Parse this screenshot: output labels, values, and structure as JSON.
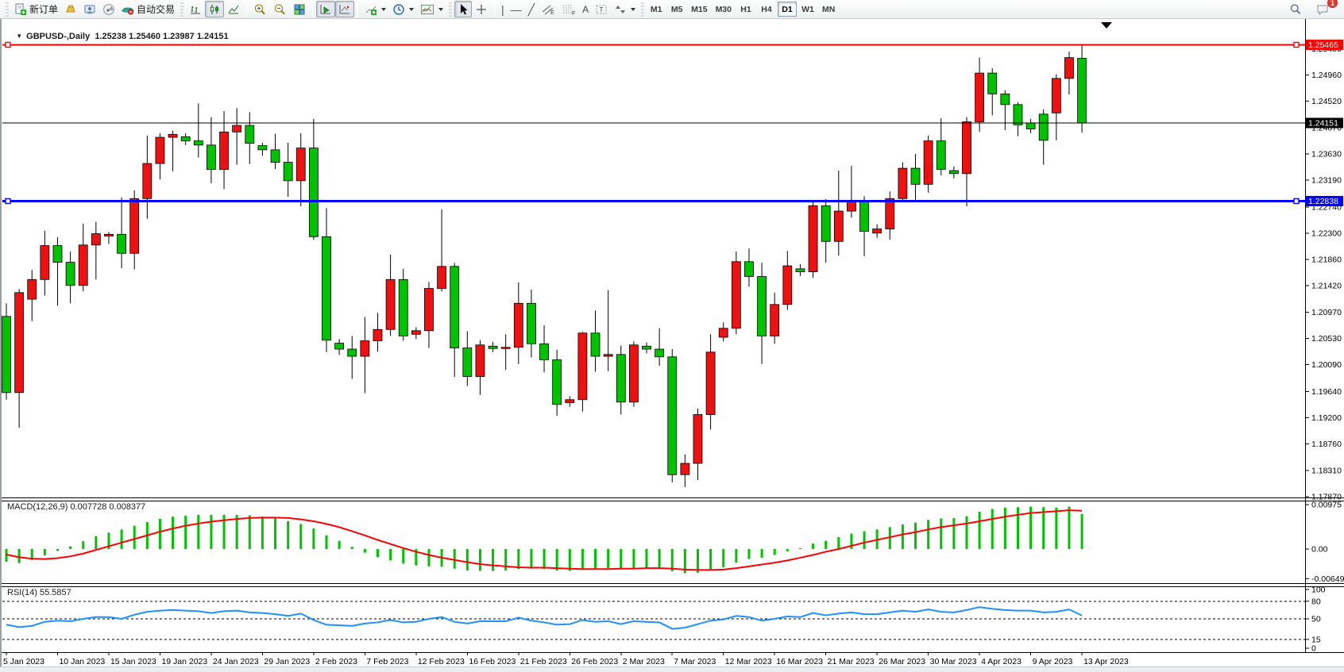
{
  "toolbar": {
    "new_order_label": "新订单",
    "auto_trading_label": "自动交易",
    "timeframes": [
      "M1",
      "M5",
      "M15",
      "M30",
      "H1",
      "H4",
      "D1",
      "W1",
      "MN"
    ],
    "active_timeframe": "D1",
    "notification_count": "1"
  },
  "chart": {
    "symbol_title": "GBPUSD-,Daily",
    "ohlc_readout": "1.25238 1.25460 1.23987 1.24151",
    "macd_label": "MACD(12,26,9) 0.007728 0.008377",
    "rsi_label": "RSI(14) 55.5857"
  },
  "colors": {
    "bull": "#ee1111",
    "bear": "#00c300",
    "wick": "#000000",
    "macd_hist": "#00c300",
    "macd_signal": "#ff0000",
    "rsi_line": "#1e90ff",
    "hline_red": "#ff0000",
    "hline_blue": "#0000ff",
    "hline_current": "#000000"
  },
  "chart_data": {
    "type": "candlestick",
    "symbol": "GBPUSD-",
    "period": "Daily",
    "current_bar": {
      "open": 1.25238,
      "high": 1.2546,
      "low": 1.23987,
      "close": 1.24151
    },
    "price_axis": {
      "ticks": [
        "1.25400",
        "1.24960",
        "1.24520",
        "1.24070",
        "1.23630",
        "1.23190",
        "1.22740",
        "1.22300",
        "1.21860",
        "1.21420",
        "1.20970",
        "1.20530",
        "1.20090",
        "1.19640",
        "1.19200",
        "1.18760",
        "1.18310",
        "1.17870"
      ],
      "badges": [
        {
          "text": "1.25465",
          "value": 1.25465,
          "color": "#ff0000"
        },
        {
          "text": "1.24151",
          "value": 1.24151,
          "color": "#000000"
        },
        {
          "text": "1.22838",
          "value": 1.22838,
          "color": "#0000ff"
        }
      ]
    },
    "hlines": [
      {
        "value": 1.25465,
        "color": "#ff0000",
        "width": 2,
        "handles": true,
        "name": "resistance-line"
      },
      {
        "value": 1.22838,
        "color": "#0000ff",
        "width": 3,
        "handles": true,
        "name": "support-line"
      },
      {
        "value": 1.24151,
        "color": "#000000",
        "width": 1,
        "handles": false,
        "name": "current-price-line"
      }
    ],
    "date_ticks": [
      "5 Jan 2023",
      "10 Jan 2023",
      "15 Jan 2023",
      "19 Jan 2023",
      "24 Jan 2023",
      "29 Jan 2023",
      "2 Feb 2023",
      "7 Feb 2023",
      "12 Feb 2023",
      "16 Feb 2023",
      "21 Feb 2023",
      "26 Feb 2023",
      "2 Mar 2023",
      "7 Mar 2023",
      "12 Mar 2023",
      "16 Mar 2023",
      "21 Mar 2023",
      "26 Mar 2023",
      "30 Mar 2023",
      "4 Apr 2023",
      "9 Apr 2023",
      "13 Apr 2023"
    ],
    "bars_columns": [
      "date",
      "open",
      "high",
      "low",
      "close"
    ],
    "bars": [
      [
        "5 Jan",
        1.209,
        1.2112,
        1.195,
        1.1962
      ],
      [
        "6 Jan",
        1.1962,
        1.2136,
        1.1903,
        1.213
      ],
      [
        "8 Jan",
        1.2119,
        1.2168,
        1.2082,
        1.2152
      ],
      [
        "9 Jan",
        1.2152,
        1.2234,
        1.2125,
        1.2209
      ],
      [
        "10 Jan",
        1.2209,
        1.2223,
        1.2108,
        1.2181
      ],
      [
        "11 Jan",
        1.2181,
        1.2199,
        1.2112,
        1.2142
      ],
      [
        "12 Jan",
        1.2142,
        1.2246,
        1.2132,
        1.221
      ],
      [
        "13 Jan",
        1.221,
        1.2249,
        1.2152,
        1.2229
      ],
      [
        "15 Jan",
        1.2225,
        1.2232,
        1.2212,
        1.2228
      ],
      [
        "16 Jan",
        1.2228,
        1.229,
        1.2171,
        1.2196
      ],
      [
        "17 Jan",
        1.2196,
        1.2302,
        1.2169,
        1.2288
      ],
      [
        "18 Jan",
        1.2288,
        1.2394,
        1.2254,
        1.2347
      ],
      [
        "19 Jan",
        1.2347,
        1.2398,
        1.232,
        1.2391
      ],
      [
        "20 Jan",
        1.2391,
        1.2402,
        1.2334,
        1.2396
      ],
      [
        "22 Jan",
        1.2392,
        1.2398,
        1.2378,
        1.2385
      ],
      [
        "23 Jan",
        1.2385,
        1.2448,
        1.2357,
        1.2378
      ],
      [
        "24 Jan",
        1.2378,
        1.2425,
        1.2314,
        1.2337
      ],
      [
        "25 Jan",
        1.2337,
        1.2435,
        1.2304,
        1.24
      ],
      [
        "26 Jan",
        1.24,
        1.244,
        1.2345,
        1.2411
      ],
      [
        "27 Jan",
        1.2411,
        1.2433,
        1.2346,
        1.2381
      ],
      [
        "29 Jan",
        1.2377,
        1.2382,
        1.236,
        1.237
      ],
      [
        "30 Jan",
        1.237,
        1.2397,
        1.2338,
        1.2349
      ],
      [
        "31 Jan",
        1.2349,
        1.2382,
        1.2291,
        1.2318
      ],
      [
        "1 Feb",
        1.2318,
        1.2398,
        1.2275,
        1.2373
      ],
      [
        "2 Feb",
        1.2373,
        1.2422,
        1.2219,
        1.2224
      ],
      [
        "3 Feb",
        1.2224,
        1.2272,
        1.203,
        1.205
      ],
      [
        "5 Feb",
        1.2045,
        1.2052,
        1.2025,
        1.2035
      ],
      [
        "6 Feb",
        1.2035,
        1.2057,
        1.1985,
        1.2023
      ],
      [
        "7 Feb",
        1.2023,
        1.2089,
        1.1961,
        1.2049
      ],
      [
        "8 Feb",
        1.2049,
        1.2096,
        1.2031,
        1.2068
      ],
      [
        "9 Feb",
        1.2068,
        1.2194,
        1.2057,
        1.2152
      ],
      [
        "10 Feb",
        1.2152,
        1.217,
        1.2049,
        1.2057
      ],
      [
        "12 Feb",
        1.206,
        1.2072,
        1.2052,
        1.2066
      ],
      [
        "13 Feb",
        1.2066,
        1.2148,
        1.2037,
        1.2137
      ],
      [
        "14 Feb",
        1.2137,
        1.227,
        1.2132,
        1.2174
      ],
      [
        "15 Feb",
        1.2174,
        1.218,
        1.1988,
        1.2037
      ],
      [
        "16 Feb",
        1.2037,
        1.2065,
        1.1973,
        1.1989
      ],
      [
        "17 Feb",
        1.1989,
        1.205,
        1.1958,
        1.2042
      ],
      [
        "19 Feb",
        1.204,
        1.2047,
        1.203,
        1.2036
      ],
      [
        "20 Feb",
        1.2036,
        1.206,
        1.2,
        1.2038
      ],
      [
        "21 Feb",
        1.2038,
        1.2147,
        1.201,
        1.2112
      ],
      [
        "22 Feb",
        1.2112,
        1.2135,
        1.2021,
        1.2044
      ],
      [
        "23 Feb",
        1.2044,
        1.2075,
        1.1996,
        1.2017
      ],
      [
        "24 Feb",
        1.2017,
        1.2034,
        1.1923,
        1.1942
      ],
      [
        "26 Feb",
        1.1945,
        1.1956,
        1.1938,
        1.195
      ],
      [
        "27 Feb",
        1.195,
        1.2064,
        1.193,
        1.2062
      ],
      [
        "28 Feb",
        1.2062,
        1.21,
        1.1997,
        1.2023
      ],
      [
        "1 Mar",
        1.2023,
        1.2134,
        1.1998,
        1.2026
      ],
      [
        "2 Mar",
        1.2026,
        1.2041,
        1.1925,
        1.1946
      ],
      [
        "3 Mar",
        1.1946,
        1.2048,
        1.1938,
        1.2042
      ],
      [
        "5 Mar",
        1.204,
        1.2046,
        1.2028,
        1.2035
      ],
      [
        "6 Mar",
        1.2035,
        1.207,
        1.2007,
        1.2022
      ],
      [
        "7 Mar",
        1.2022,
        1.2035,
        1.1811,
        1.1824
      ],
      [
        "8 Mar",
        1.1824,
        1.1858,
        1.1803,
        1.1843
      ],
      [
        "9 Mar",
        1.1843,
        1.1935,
        1.1815,
        1.1925
      ],
      [
        "10 Mar",
        1.1925,
        1.206,
        1.19,
        1.203
      ],
      [
        "12 Mar",
        1.2055,
        1.208,
        1.2048,
        1.207
      ],
      [
        "13 Mar",
        1.207,
        1.2199,
        1.206,
        1.2182
      ],
      [
        "14 Mar",
        1.2182,
        1.2204,
        1.214,
        1.2157
      ],
      [
        "15 Mar",
        1.2157,
        1.218,
        1.201,
        1.2057
      ],
      [
        "16 Mar",
        1.2057,
        1.213,
        1.2044,
        1.211
      ],
      [
        "17 Mar",
        1.211,
        1.22,
        1.2101,
        1.2175
      ],
      [
        "19 Mar",
        1.217,
        1.2178,
        1.2158,
        1.2165
      ],
      [
        "20 Mar",
        1.2165,
        1.2284,
        1.2155,
        1.2276
      ],
      [
        "21 Mar",
        1.2276,
        1.2287,
        1.218,
        1.2216
      ],
      [
        "22 Mar",
        1.2216,
        1.2335,
        1.2192,
        1.2267
      ],
      [
        "23 Mar",
        1.2267,
        1.2343,
        1.2256,
        1.2284
      ],
      [
        "24 Mar",
        1.2284,
        1.2292,
        1.2191,
        1.2233
      ],
      [
        "26 Mar",
        1.223,
        1.2245,
        1.2222,
        1.2237
      ],
      [
        "27 Mar",
        1.2237,
        1.23,
        1.2219,
        1.2288
      ],
      [
        "28 Mar",
        1.2288,
        1.2349,
        1.2283,
        1.2339
      ],
      [
        "29 Mar",
        1.2339,
        1.2363,
        1.2286,
        1.2312
      ],
      [
        "30 Mar",
        1.2312,
        1.2394,
        1.2298,
        1.2385
      ],
      [
        "31 Mar",
        1.2385,
        1.2423,
        1.2327,
        1.2337
      ],
      [
        "2 Apr",
        1.2335,
        1.2342,
        1.2322,
        1.233
      ],
      [
        "3 Apr",
        1.233,
        1.2425,
        1.2275,
        1.2417
      ],
      [
        "4 Apr",
        1.2417,
        1.2525,
        1.24,
        1.2499
      ],
      [
        "5 Apr",
        1.2499,
        1.2507,
        1.2428,
        1.2464
      ],
      [
        "6 Apr",
        1.2464,
        1.247,
        1.2403,
        1.2446
      ],
      [
        "7 Apr",
        1.2446,
        1.245,
        1.2393,
        1.2412
      ],
      [
        "9 Apr",
        1.2415,
        1.2422,
        1.2398,
        1.2405
      ],
      [
        "10 Apr",
        1.243,
        1.2438,
        1.2345,
        1.2386
      ],
      [
        "11 Apr",
        1.2432,
        1.2497,
        1.2386,
        1.249
      ],
      [
        "12 Apr",
        1.249,
        1.2535,
        1.2463,
        1.2525
      ],
      [
        "13 Apr",
        1.25238,
        1.2546,
        1.23987,
        1.24151
      ]
    ],
    "macd": {
      "label": "MACD(12,26,9)",
      "value_main": 0.007728,
      "value_signal": 0.008377,
      "axis": [
        {
          "text": "0.00975",
          "value": 0.00975
        },
        {
          "text": "0.00",
          "value": 0
        },
        {
          "text": "-0.006494",
          "value": -0.006494
        }
      ],
      "histogram": [
        -0.0028,
        -0.0031,
        -0.0024,
        -0.0014,
        -0.0004,
        0.0006,
        0.0017,
        0.0028,
        0.0036,
        0.0043,
        0.0051,
        0.0059,
        0.0066,
        0.0071,
        0.0073,
        0.0075,
        0.0075,
        0.0075,
        0.0075,
        0.0074,
        0.0071,
        0.0067,
        0.0061,
        0.0055,
        0.0045,
        0.003,
        0.0018,
        0.0005,
        -0.0008,
        -0.0018,
        -0.0025,
        -0.0032,
        -0.0036,
        -0.0038,
        -0.0039,
        -0.0043,
        -0.0047,
        -0.0048,
        -0.0048,
        -0.0047,
        -0.0044,
        -0.0043,
        -0.0044,
        -0.0047,
        -0.0048,
        -0.0046,
        -0.0044,
        -0.0042,
        -0.0043,
        -0.0042,
        -0.0041,
        -0.0041,
        -0.0049,
        -0.0053,
        -0.0052,
        -0.0047,
        -0.004,
        -0.003,
        -0.0022,
        -0.0019,
        -0.0013,
        -0.0005,
        0.0002,
        0.0012,
        0.0018,
        0.0026,
        0.0034,
        0.0039,
        0.0043,
        0.0048,
        0.0054,
        0.0058,
        0.0064,
        0.0067,
        0.0068,
        0.0072,
        0.0082,
        0.0088,
        0.0091,
        0.0092,
        0.0093,
        0.0092,
        0.0091,
        0.0093,
        0.0077
      ],
      "signal": [
        -0.0012,
        -0.0018,
        -0.0021,
        -0.0022,
        -0.002,
        -0.0016,
        -0.001,
        -0.0002,
        0.0006,
        0.0014,
        0.0022,
        0.003,
        0.0038,
        0.0045,
        0.0051,
        0.0056,
        0.006,
        0.0063,
        0.0066,
        0.0068,
        0.0069,
        0.0069,
        0.0068,
        0.0065,
        0.0061,
        0.0055,
        0.0048,
        0.0039,
        0.003,
        0.002,
        0.0011,
        0.0002,
        -0.0006,
        -0.0013,
        -0.0019,
        -0.0024,
        -0.0029,
        -0.0033,
        -0.0036,
        -0.0038,
        -0.004,
        -0.0041,
        -0.0041,
        -0.0042,
        -0.0043,
        -0.0044,
        -0.0044,
        -0.0044,
        -0.0043,
        -0.0043,
        -0.0042,
        -0.0042,
        -0.0043,
        -0.0045,
        -0.0046,
        -0.0046,
        -0.0045,
        -0.0042,
        -0.0038,
        -0.0034,
        -0.003,
        -0.0025,
        -0.0019,
        -0.0013,
        -0.0006,
        0.0,
        0.0007,
        0.0014,
        0.002,
        0.0026,
        0.0032,
        0.0037,
        0.0043,
        0.0048,
        0.0052,
        0.0056,
        0.0061,
        0.0066,
        0.0071,
        0.0075,
        0.0079,
        0.0081,
        0.0083,
        0.0085,
        0.0084
      ]
    },
    "rsi": {
      "label": "RSI(14)",
      "value": 55.5857,
      "axis": [
        {
          "text": "100",
          "value": 100
        },
        {
          "text": "80",
          "value": 80
        },
        {
          "text": "50",
          "value": 50
        },
        {
          "text": "15",
          "value": 15
        },
        {
          "text": "0",
          "value": 0
        }
      ],
      "levels": [
        80,
        50,
        15
      ],
      "values": [
        40,
        36,
        38,
        45,
        47,
        46,
        50,
        53,
        53,
        50,
        57,
        62,
        64,
        65,
        64,
        63,
        60,
        63,
        64,
        61,
        60,
        58,
        55,
        59,
        48,
        40,
        39,
        38,
        42,
        44,
        48,
        44,
        45,
        50,
        53,
        45,
        42,
        46,
        46,
        46,
        52,
        47,
        44,
        40,
        41,
        48,
        45,
        46,
        41,
        46,
        45,
        44,
        33,
        35,
        41,
        47,
        49,
        55,
        53,
        47,
        50,
        54,
        53,
        60,
        56,
        59,
        61,
        58,
        58,
        61,
        64,
        62,
        66,
        62,
        61,
        65,
        70,
        67,
        65,
        64,
        64,
        61,
        62,
        66,
        55.59
      ]
    }
  }
}
